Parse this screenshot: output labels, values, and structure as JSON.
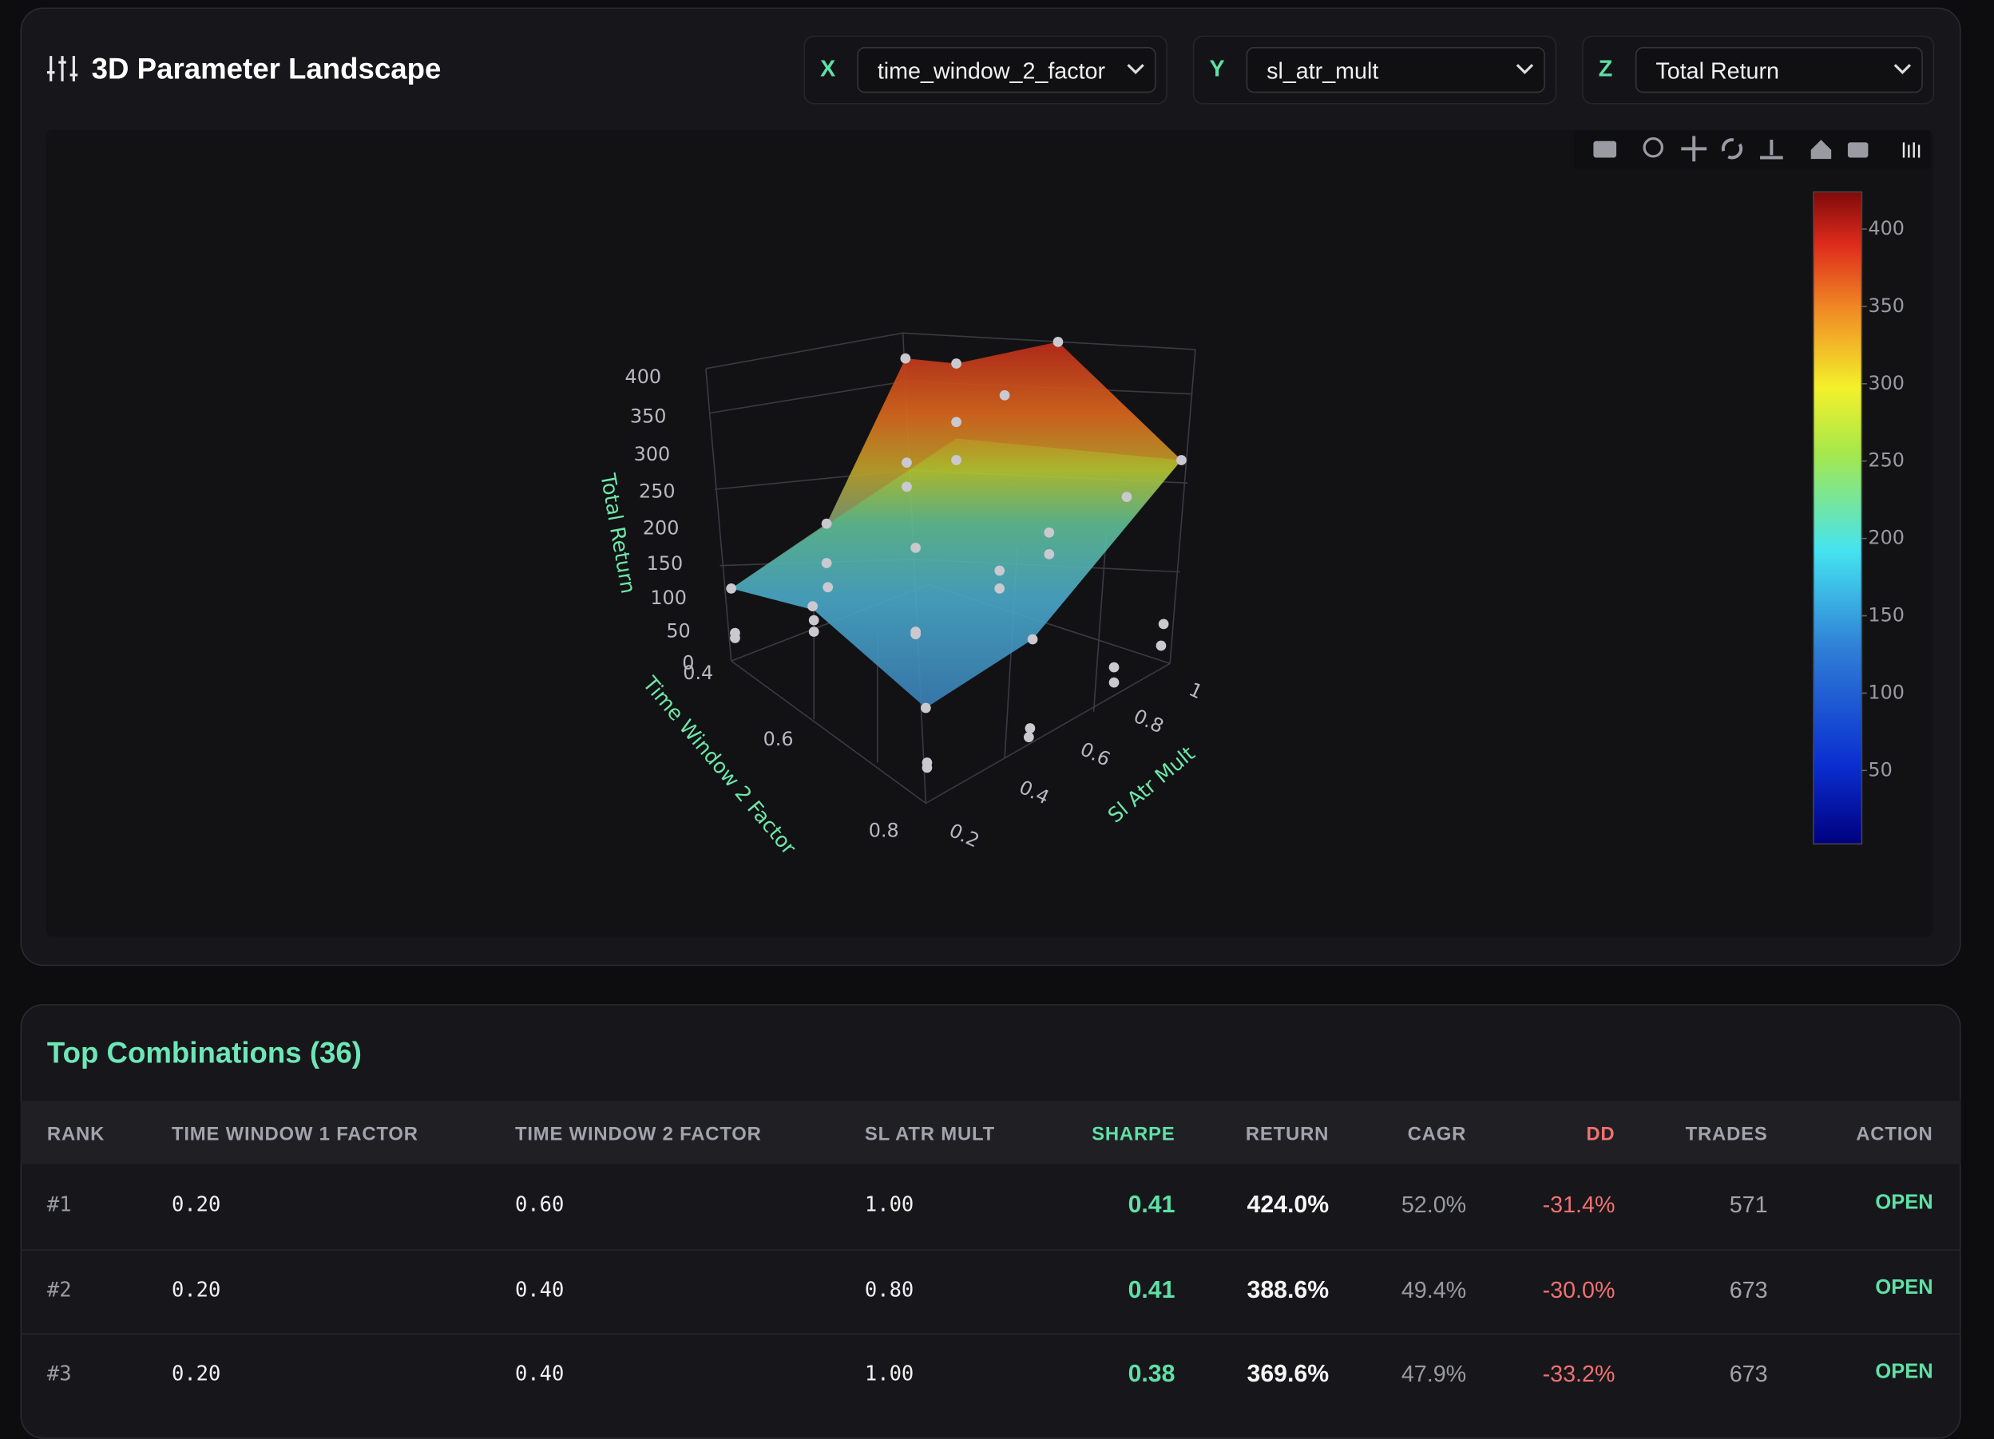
{
  "header": {
    "title": "3D Parameter Landscape"
  },
  "selectors": [
    {
      "label": "X",
      "value": "time_window_2_factor"
    },
    {
      "label": "Y",
      "value": "sl_atr_mult"
    },
    {
      "label": "Z",
      "value": "Total Return"
    }
  ],
  "plot": {
    "z_axis_title": "Total Return",
    "x_axis_title": "Time Window 2 Factor",
    "y_axis_title": "Sl Atr Mult",
    "z_ticks": [
      400,
      350,
      300,
      250,
      200,
      150,
      100,
      50,
      0
    ],
    "x_ticks": [
      0.4,
      0.6,
      0.8
    ],
    "y_ticks": [
      0.2,
      0.4,
      0.6,
      0.8,
      1
    ],
    "colorbar_range": [
      2.5,
      424
    ],
    "colorbar_ticks": [
      400,
      350,
      300,
      250,
      200,
      150,
      100,
      50
    ]
  },
  "table": {
    "title": "Top Combinations (36)",
    "columns": [
      "RANK",
      "TIME WINDOW 1 FACTOR",
      "TIME WINDOW 2 FACTOR",
      "SL ATR MULT",
      "SHARPE",
      "RETURN",
      "CAGR",
      "DD",
      "TRADES",
      "ACTION"
    ],
    "rows": [
      [
        "#1",
        "0.20",
        "0.60",
        "1.00",
        "0.41",
        "424.0%",
        "52.0%",
        "-31.4%",
        "571",
        "OPEN"
      ],
      [
        "#2",
        "0.20",
        "0.40",
        "0.80",
        "0.41",
        "388.6%",
        "49.4%",
        "-30.0%",
        "673",
        "OPEN"
      ],
      [
        "#3",
        "0.20",
        "0.40",
        "1.00",
        "0.38",
        "369.6%",
        "47.9%",
        "-33.2%",
        "673",
        "OPEN"
      ]
    ]
  }
}
